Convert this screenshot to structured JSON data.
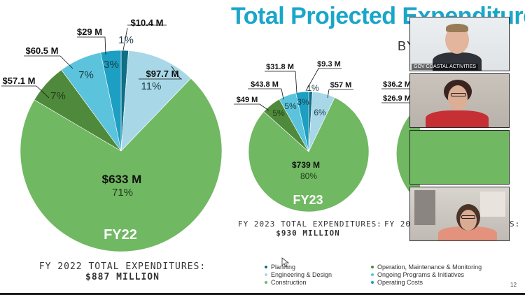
{
  "header": {
    "title": "Total Projected Expenditures",
    "subtitle_fragment": "BY"
  },
  "colors": {
    "planning": "#0f6f86",
    "engineering_design": "#a8d8e8",
    "construction": "#70b862",
    "operation_maintenance_monitoring": "#4f8a3c",
    "ongoing_programs_initiatives": "#5cc3dc",
    "operating_costs": "#1c9fc2"
  },
  "chart_data": [
    {
      "type": "pie",
      "label": "FY22",
      "caption": "FY 2022 TOTAL EXPENDITURES:",
      "total": "$887 MILLION",
      "slices": [
        {
          "category": "Planning",
          "value": 10.4,
          "amount": "$10.4 M",
          "percent": "1%"
        },
        {
          "category": "Engineering & Design",
          "value": 97.7,
          "amount": "$97.7 M",
          "percent": "11%"
        },
        {
          "category": "Construction",
          "value": 633,
          "amount": "$633 M",
          "percent": "71%"
        },
        {
          "category": "Operation, Maintenance & Monitoring",
          "value": 57.1,
          "amount": "$57.1 M",
          "percent": "7%"
        },
        {
          "category": "Ongoing Programs & Initiatives",
          "value": 60.5,
          "amount": "$60.5 M",
          "percent": "7%"
        },
        {
          "category": "Operating Costs",
          "value": 29,
          "amount": "$29 M",
          "percent": "3%"
        }
      ]
    },
    {
      "type": "pie",
      "label": "FY23",
      "caption": "FY 2023 TOTAL EXPENDITURES:",
      "total": "$930 MILLION",
      "slices": [
        {
          "category": "Planning",
          "value": 9.3,
          "amount": "$9.3 M",
          "percent": "1%"
        },
        {
          "category": "Engineering & Design",
          "value": 57,
          "amount": "$57 M",
          "percent": "6%"
        },
        {
          "category": "Construction",
          "value": 739,
          "amount": "$739 M",
          "percent": "80%"
        },
        {
          "category": "Operation, Maintenance & Monitoring",
          "value": 49,
          "amount": "$49 M",
          "percent": "5%"
        },
        {
          "category": "Ongoing Programs & Initiatives",
          "value": 43.8,
          "amount": "$43.8 M",
          "percent": "5%"
        },
        {
          "category": "Operating Costs",
          "value": 31.8,
          "amount": "$31.8 M",
          "percent": "3%"
        }
      ]
    },
    {
      "type": "pie",
      "caption_fragment": "FY 20",
      "caption_suffix": "S:",
      "visible_labels": [
        "$36.2 M",
        "$26.9 M"
      ]
    }
  ],
  "legend": {
    "left": [
      {
        "label": "Planning",
        "key": "planning"
      },
      {
        "label": "Engineering & Design",
        "key": "engineering_design"
      },
      {
        "label": "Construction",
        "key": "construction"
      }
    ],
    "right": [
      {
        "label": "Operation, Maintenance & Monitoring",
        "key": "operation_maintenance_monitoring"
      },
      {
        "label": "Ongoing Programs & Initiatives",
        "key": "ongoing_programs_initiatives"
      },
      {
        "label": "Operating Costs",
        "key": "operating_costs"
      }
    ]
  },
  "page_number": "12",
  "video_call": {
    "tiles": [
      {
        "label": "GOV COASTAL ACTIVITIES"
      },
      {
        "label": ""
      },
      {
        "label": ""
      },
      {
        "label": ""
      }
    ]
  }
}
